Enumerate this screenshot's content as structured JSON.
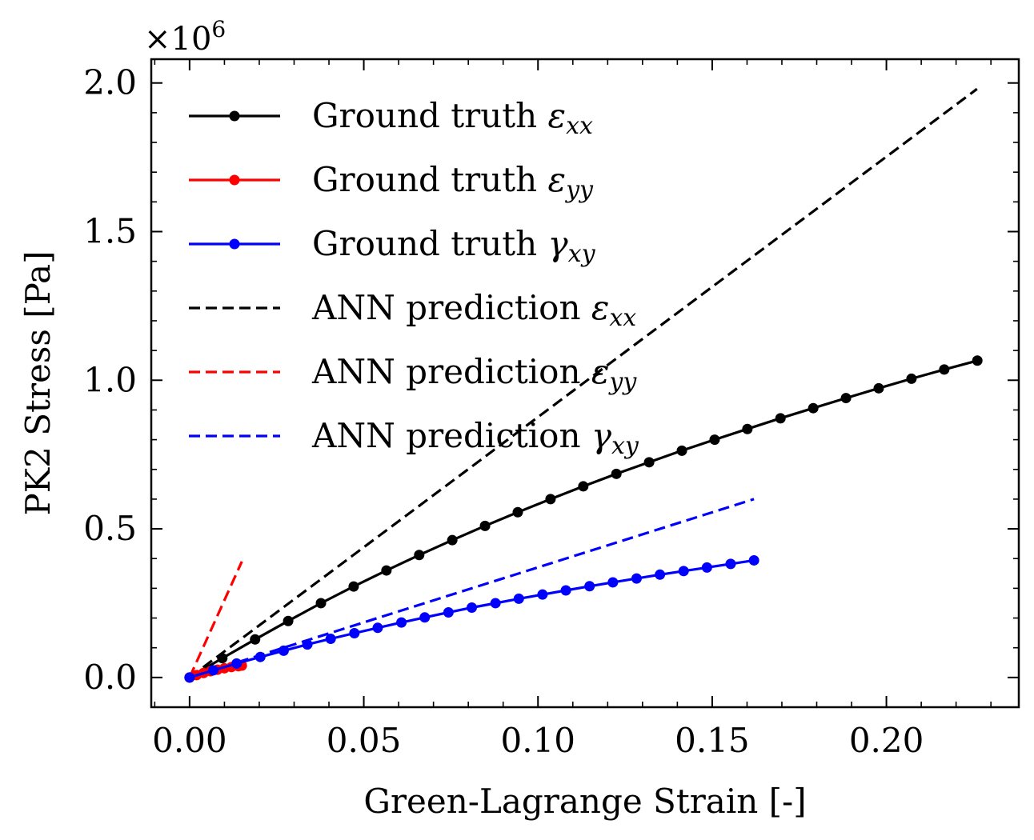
{
  "chart_data": {
    "type": "line",
    "title": "",
    "xlabel": "Green-Lagrange Strain [-]",
    "ylabel": "PK2 Stress [Pa]",
    "y_multiplier": "×10",
    "y_multiplier_exp": "6",
    "xlim": [
      -0.011,
      0.238
    ],
    "ylim": [
      -0.1,
      2.08
    ],
    "xticks": [
      {
        "v": 0.0,
        "label": "0.00"
      },
      {
        "v": 0.05,
        "label": "0.05"
      },
      {
        "v": 0.1,
        "label": "0.10"
      },
      {
        "v": 0.15,
        "label": "0.15"
      },
      {
        "v": 0.2,
        "label": "0.20"
      }
    ],
    "yticks": [
      {
        "v": 0.0,
        "label": "0.0"
      },
      {
        "v": 0.5,
        "label": "0.5"
      },
      {
        "v": 1.0,
        "label": "1.0"
      },
      {
        "v": 1.5,
        "label": "1.5"
      },
      {
        "v": 2.0,
        "label": "2.0"
      }
    ],
    "grid": false,
    "legend_position": "top-left",
    "series": [
      {
        "name": "Ground truth εxx",
        "legend_main": "Ground truth ",
        "legend_sym": "ε",
        "legend_sub": "xx",
        "color": "#000000",
        "style": "solid",
        "markers": true,
        "points": [
          [
            0.0,
            0.0
          ],
          [
            0.0094,
            0.065
          ],
          [
            0.0188,
            0.128
          ],
          [
            0.0283,
            0.19
          ],
          [
            0.0377,
            0.25
          ],
          [
            0.0471,
            0.306
          ],
          [
            0.0565,
            0.36
          ],
          [
            0.0659,
            0.412
          ],
          [
            0.0754,
            0.462
          ],
          [
            0.0848,
            0.51
          ],
          [
            0.0942,
            0.556
          ],
          [
            0.1036,
            0.6
          ],
          [
            0.113,
            0.643
          ],
          [
            0.1225,
            0.685
          ],
          [
            0.1319,
            0.724
          ],
          [
            0.1413,
            0.763
          ],
          [
            0.1507,
            0.8
          ],
          [
            0.1601,
            0.836
          ],
          [
            0.1696,
            0.872
          ],
          [
            0.179,
            0.906
          ],
          [
            0.1884,
            0.94
          ],
          [
            0.1978,
            0.973
          ],
          [
            0.2072,
            1.005
          ],
          [
            0.2166,
            1.036
          ],
          [
            0.2261,
            1.066
          ]
        ]
      },
      {
        "name": "Ground truth εyy",
        "legend_main": "Ground truth ",
        "legend_sym": "ε",
        "legend_sub": "yy",
        "color": "#ff0000",
        "style": "solid",
        "markers": true,
        "points": [
          [
            0.0,
            0.0
          ],
          [
            0.002,
            0.008
          ],
          [
            0.004,
            0.015
          ],
          [
            0.006,
            0.021
          ],
          [
            0.008,
            0.026
          ],
          [
            0.01,
            0.031
          ],
          [
            0.012,
            0.035
          ],
          [
            0.014,
            0.038
          ],
          [
            0.015,
            0.04
          ]
        ]
      },
      {
        "name": "Ground truth γxy",
        "legend_main": "Ground truth ",
        "legend_sym": "γ",
        "legend_sub": "xy",
        "color": "#0000ff",
        "style": "solid",
        "markers": true,
        "points": [
          [
            0.0,
            0.0
          ],
          [
            0.0068,
            0.024
          ],
          [
            0.0135,
            0.047
          ],
          [
            0.0203,
            0.069
          ],
          [
            0.027,
            0.09
          ],
          [
            0.0338,
            0.111
          ],
          [
            0.0405,
            0.13
          ],
          [
            0.0473,
            0.149
          ],
          [
            0.054,
            0.167
          ],
          [
            0.0608,
            0.185
          ],
          [
            0.0675,
            0.202
          ],
          [
            0.0743,
            0.219
          ],
          [
            0.081,
            0.235
          ],
          [
            0.0878,
            0.25
          ],
          [
            0.0945,
            0.265
          ],
          [
            0.1013,
            0.279
          ],
          [
            0.108,
            0.293
          ],
          [
            0.1148,
            0.307
          ],
          [
            0.1215,
            0.32
          ],
          [
            0.1283,
            0.333
          ],
          [
            0.135,
            0.346
          ],
          [
            0.1418,
            0.358
          ],
          [
            0.1485,
            0.37
          ],
          [
            0.1553,
            0.382
          ],
          [
            0.162,
            0.394
          ]
        ]
      },
      {
        "name": "ANN prediction εxx",
        "legend_main": "ANN prediction ",
        "legend_sym": "ε",
        "legend_sub": "xx",
        "color": "#000000",
        "style": "dashed",
        "markers": false,
        "points": [
          [
            0.0,
            0.0
          ],
          [
            0.226,
            1.98
          ]
        ]
      },
      {
        "name": "ANN prediction εyy",
        "legend_main": "ANN prediction ",
        "legend_sym": "ε",
        "legend_sub": "yy",
        "color": "#ff0000",
        "style": "dashed",
        "markers": false,
        "points": [
          [
            0.0,
            0.0
          ],
          [
            0.015,
            0.39
          ]
        ]
      },
      {
        "name": "ANN prediction γxy",
        "legend_main": "ANN prediction ",
        "legend_sym": "γ",
        "legend_sub": "xy",
        "color": "#0000ff",
        "style": "dashed",
        "markers": false,
        "points": [
          [
            0.0,
            0.0
          ],
          [
            0.162,
            0.6
          ]
        ]
      }
    ]
  }
}
